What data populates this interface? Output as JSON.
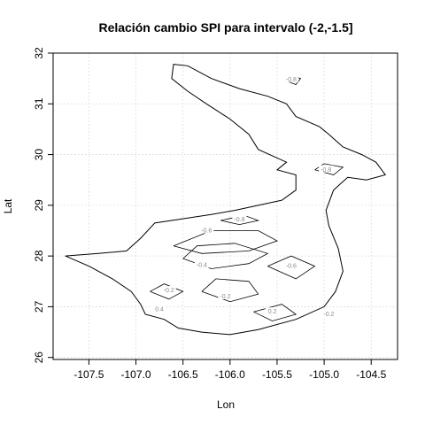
{
  "chart_data": {
    "type": "contour",
    "title": "Relación cambio SPI para intervalo (-2,-1.5]",
    "xlabel": "Lon",
    "ylabel": "Lat",
    "xlim": [
      -107.88,
      -104.22
    ],
    "ylim": [
      25.96,
      32.0
    ],
    "xticks": [
      -107.5,
      -107.0,
      -106.5,
      -106.0,
      -105.5,
      -105.0,
      -104.5
    ],
    "xtick_labels": [
      "-107.5",
      "-107.0",
      "-106.5",
      "-106.0",
      "-105.5",
      "-105.0",
      "-104.5"
    ],
    "yticks": [
      26,
      27,
      28,
      29,
      30,
      31,
      32
    ],
    "ytick_labels": [
      "26",
      "27",
      "28",
      "29",
      "30",
      "31",
      "32"
    ],
    "grid": true,
    "region_outline": [
      [
        -106.6,
        31.78
      ],
      [
        -106.45,
        31.75
      ],
      [
        -106.2,
        31.5
      ],
      [
        -105.9,
        31.3
      ],
      [
        -105.6,
        31.15
      ],
      [
        -105.4,
        31.0
      ],
      [
        -105.3,
        30.75
      ],
      [
        -105.05,
        30.55
      ],
      [
        -104.95,
        30.4
      ],
      [
        -104.8,
        30.15
      ],
      [
        -104.6,
        30.0
      ],
      [
        -104.45,
        29.85
      ],
      [
        -104.35,
        29.6
      ],
      [
        -104.55,
        29.5
      ],
      [
        -104.75,
        29.55
      ],
      [
        -104.9,
        29.3
      ],
      [
        -104.98,
        28.9
      ],
      [
        -104.95,
        28.6
      ],
      [
        -104.85,
        28.15
      ],
      [
        -104.8,
        27.7
      ],
      [
        -104.88,
        27.3
      ],
      [
        -105.0,
        27.0
      ],
      [
        -105.3,
        26.75
      ],
      [
        -105.7,
        26.55
      ],
      [
        -106.0,
        26.45
      ],
      [
        -106.3,
        26.5
      ],
      [
        -106.55,
        26.58
      ],
      [
        -106.7,
        26.75
      ],
      [
        -106.9,
        26.85
      ],
      [
        -106.95,
        27.05
      ],
      [
        -107.05,
        27.3
      ],
      [
        -107.25,
        27.55
      ],
      [
        -107.5,
        27.8
      ],
      [
        -107.75,
        28.0
      ],
      [
        -107.4,
        28.05
      ],
      [
        -107.1,
        28.1
      ],
      [
        -106.95,
        28.35
      ],
      [
        -106.8,
        28.65
      ],
      [
        -106.45,
        28.75
      ],
      [
        -106.2,
        28.82
      ],
      [
        -105.95,
        28.9
      ],
      [
        -105.7,
        29.0
      ],
      [
        -105.45,
        29.1
      ],
      [
        -105.3,
        29.3
      ],
      [
        -105.3,
        29.6
      ],
      [
        -105.5,
        29.7
      ],
      [
        -105.4,
        29.85
      ],
      [
        -105.7,
        30.1
      ],
      [
        -105.8,
        30.4
      ],
      [
        -106.0,
        30.7
      ],
      [
        -106.25,
        31.0
      ],
      [
        -106.45,
        31.25
      ],
      [
        -106.62,
        31.5
      ],
      [
        -106.6,
        31.78
      ]
    ],
    "contour_levels": [
      {
        "level": -0.8,
        "points": [
          [
            -106.1,
            28.7
          ],
          [
            -105.9,
            28.62
          ],
          [
            -105.7,
            28.7
          ],
          [
            -105.85,
            28.8
          ],
          [
            -106.1,
            28.7
          ]
        ]
      },
      {
        "level": -0.8,
        "points": [
          [
            -105.1,
            29.7
          ],
          [
            -104.9,
            29.6
          ],
          [
            -104.8,
            29.75
          ],
          [
            -105.0,
            29.82
          ],
          [
            -105.1,
            29.7
          ]
        ]
      },
      {
        "level": -0.6,
        "points": [
          [
            -106.6,
            28.2
          ],
          [
            -106.3,
            28.05
          ],
          [
            -105.8,
            28.1
          ],
          [
            -105.5,
            28.3
          ],
          [
            -105.7,
            28.5
          ],
          [
            -106.2,
            28.5
          ],
          [
            -106.6,
            28.2
          ]
        ]
      },
      {
        "level": -0.6,
        "points": [
          [
            -105.6,
            27.8
          ],
          [
            -105.3,
            27.55
          ],
          [
            -105.1,
            27.8
          ],
          [
            -105.35,
            28.0
          ],
          [
            -105.6,
            27.8
          ]
        ]
      },
      {
        "level": -0.4,
        "points": [
          [
            -106.5,
            27.95
          ],
          [
            -106.2,
            27.75
          ],
          [
            -105.8,
            27.85
          ],
          [
            -105.6,
            28.05
          ],
          [
            -105.95,
            28.25
          ],
          [
            -106.35,
            28.2
          ],
          [
            -106.5,
            27.95
          ]
        ]
      },
      {
        "level": -0.2,
        "points": [
          [
            -106.3,
            27.3
          ],
          [
            -106.0,
            27.1
          ],
          [
            -105.7,
            27.25
          ],
          [
            -105.8,
            27.5
          ],
          [
            -106.15,
            27.55
          ],
          [
            -106.3,
            27.3
          ]
        ]
      },
      {
        "level": -0.2,
        "points": [
          [
            -106.85,
            27.3
          ],
          [
            -106.65,
            27.15
          ],
          [
            -106.5,
            27.3
          ],
          [
            -106.7,
            27.45
          ],
          [
            -106.85,
            27.3
          ]
        ]
      },
      {
        "level": 0.2,
        "points": [
          [
            -105.75,
            26.9
          ],
          [
            -105.55,
            26.72
          ],
          [
            -105.3,
            26.85
          ],
          [
            -105.45,
            27.05
          ],
          [
            -105.75,
            26.9
          ]
        ]
      },
      {
        "level": -0.8,
        "points": [
          [
            -105.4,
            31.45
          ],
          [
            -105.3,
            31.38
          ],
          [
            -105.25,
            31.5
          ],
          [
            -105.35,
            31.55
          ],
          [
            -105.4,
            31.45
          ]
        ]
      }
    ],
    "contour_labels": [
      {
        "text": "-0.8",
        "lon": -105.35,
        "lat": 31.48
      },
      {
        "text": "-0.8",
        "lon": -104.98,
        "lat": 29.7
      },
      {
        "text": "-0.8",
        "lon": -105.9,
        "lat": 28.72
      },
      {
        "text": "-0.6",
        "lon": -106.25,
        "lat": 28.5
      },
      {
        "text": "-0.6",
        "lon": -105.35,
        "lat": 27.8
      },
      {
        "text": "-0.4",
        "lon": -106.3,
        "lat": 27.82
      },
      {
        "text": "-0.2",
        "lon": -106.05,
        "lat": 27.2
      },
      {
        "text": "-0.2",
        "lon": -106.65,
        "lat": 27.32
      },
      {
        "text": "0.2",
        "lon": -105.55,
        "lat": 26.9
      },
      {
        "text": "-0.2",
        "lon": -104.95,
        "lat": 26.85
      },
      {
        "text": "0.4",
        "lon": -106.75,
        "lat": 26.95
      }
    ]
  }
}
